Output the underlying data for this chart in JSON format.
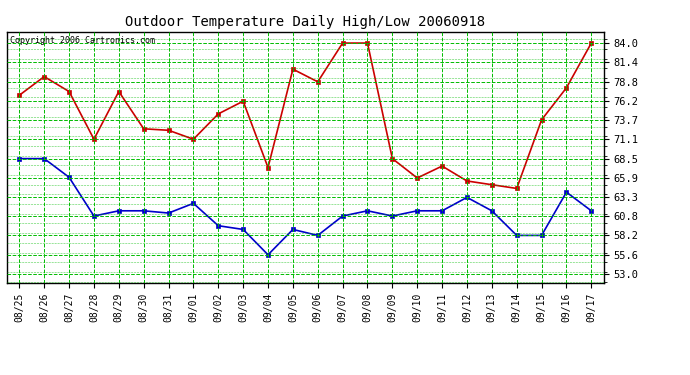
{
  "title": "Outdoor Temperature Daily High/Low 20060918",
  "copyright": "Copyright 2006 Cartronics.com",
  "x_labels": [
    "08/25",
    "08/26",
    "08/27",
    "08/28",
    "08/29",
    "08/30",
    "08/31",
    "09/01",
    "09/02",
    "09/03",
    "09/04",
    "09/05",
    "09/06",
    "09/07",
    "09/08",
    "09/09",
    "09/10",
    "09/11",
    "09/12",
    "09/13",
    "09/14",
    "09/15",
    "09/16",
    "09/17"
  ],
  "high_temps": [
    77.0,
    79.5,
    77.5,
    71.1,
    77.5,
    72.5,
    72.3,
    71.1,
    74.5,
    76.2,
    67.3,
    80.5,
    78.8,
    84.0,
    84.0,
    68.5,
    65.9,
    67.5,
    65.5,
    65.0,
    64.5,
    73.7,
    78.0,
    84.0
  ],
  "low_temps": [
    68.5,
    68.5,
    66.0,
    60.8,
    61.5,
    61.5,
    61.2,
    62.5,
    59.5,
    59.0,
    55.6,
    59.0,
    58.2,
    60.8,
    61.5,
    60.8,
    61.5,
    61.5,
    63.3,
    61.5,
    58.2,
    58.2,
    64.0,
    61.5
  ],
  "high_color": "#cc0000",
  "low_color": "#0000cc",
  "plot_bg": "#ffffff",
  "fig_bg": "#ffffff",
  "grid_color": "#00bb00",
  "title_color": "#000000",
  "border_color": "#000000",
  "yticks": [
    53.0,
    55.6,
    58.2,
    60.8,
    63.3,
    65.9,
    68.5,
    71.1,
    73.7,
    76.2,
    78.8,
    81.4,
    84.0
  ],
  "ylim": [
    51.8,
    85.5
  ],
  "figsize": [
    6.9,
    3.75
  ],
  "dpi": 100
}
